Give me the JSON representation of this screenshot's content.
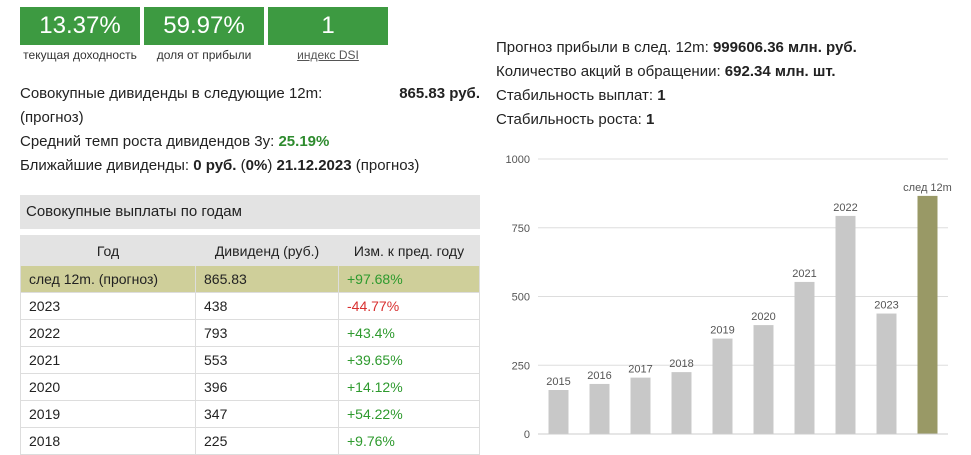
{
  "metrics": [
    {
      "value": "13.37%",
      "label": "текущая доходность"
    },
    {
      "value": "59.97%",
      "label": "доля от прибыли"
    },
    {
      "value": "1",
      "label": "индекс DSI"
    }
  ],
  "info": {
    "div12_label": "Совокупные дивиденды в следующие 12m:",
    "div12_value": "865.83 руб.",
    "div12_note": "(прогноз)",
    "growth_label": "Средний темп роста дивидендов 3y:",
    "growth_value": "25.19%",
    "next_label": "Ближайшие дивиденды:",
    "next_amount": "0 руб.",
    "next_pct": "0%",
    "next_date": "21.12.2023",
    "next_note": "(прогноз)"
  },
  "right_info": {
    "profit_label": "Прогноз прибыли в след. 12m:",
    "profit_value": "999606.36 млн. руб.",
    "shares_label": "Количество акций в обращении:",
    "shares_value": "692.34 млн. шт.",
    "stab_pay_label": "Стабильность выплат:",
    "stab_pay_value": "1",
    "stab_growth_label": "Стабильность роста:",
    "stab_growth_value": "1"
  },
  "table": {
    "title": "Совокупные выплаты по годам",
    "headers": [
      "Год",
      "Дивиденд (руб.)",
      "Изм. к пред. году"
    ],
    "rows": [
      [
        "след 12m. (прогноз)",
        "865.83",
        "+97.68%"
      ],
      [
        "2023",
        "438",
        "-44.77%"
      ],
      [
        "2022",
        "793",
        "+43.4%"
      ],
      [
        "2021",
        "553",
        "+39.65%"
      ],
      [
        "2020",
        "396",
        "+14.12%"
      ],
      [
        "2019",
        "347",
        "+54.22%"
      ],
      [
        "2018",
        "225",
        "+9.76%"
      ]
    ]
  },
  "chart_data": {
    "type": "bar",
    "categories": [
      "2015",
      "2016",
      "2017",
      "2018",
      "2019",
      "2020",
      "2021",
      "2022",
      "2023",
      "след 12m"
    ],
    "values": [
      160,
      182,
      205,
      225,
      347,
      396,
      553,
      793,
      438,
      865.83
    ],
    "ylim": [
      0,
      1000
    ],
    "yticks": [
      0,
      250,
      500,
      750,
      1000
    ],
    "grid": true,
    "colors": {
      "bar": "#c8c8c8",
      "highlight": "#999966"
    }
  }
}
